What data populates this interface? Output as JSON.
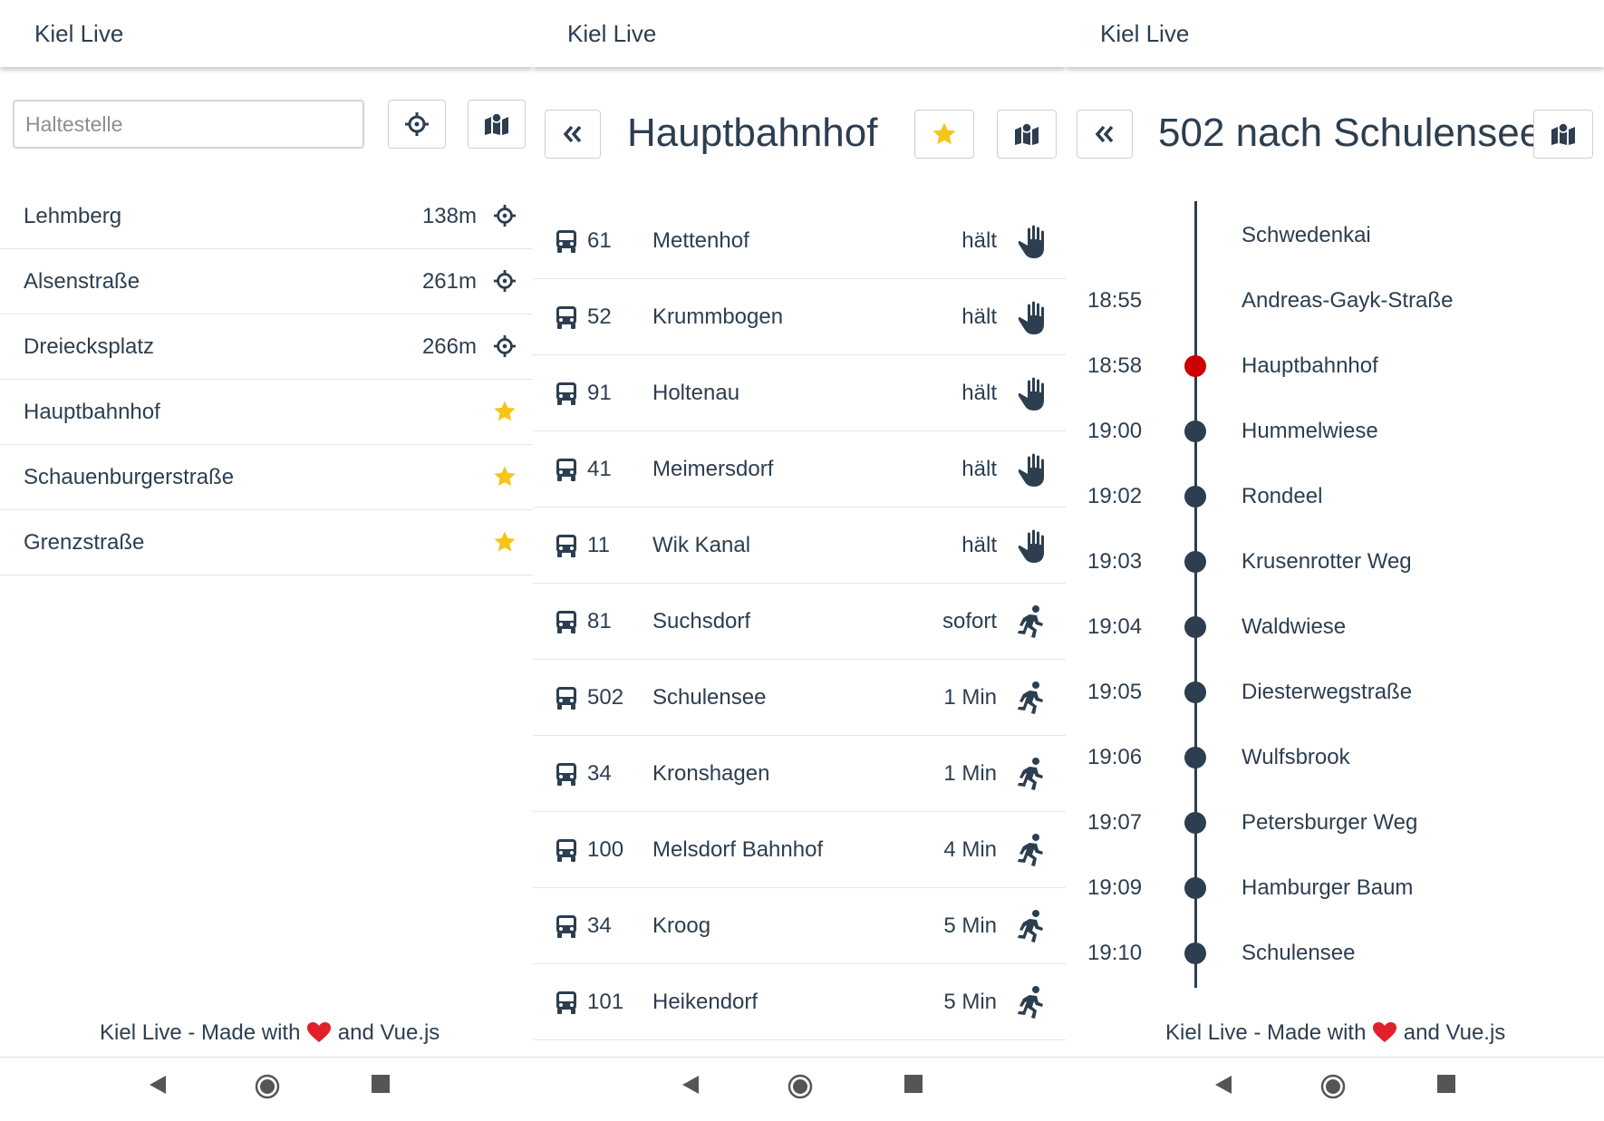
{
  "colors": {
    "text": "#2c3e50",
    "star": "#f5c518",
    "current_stop": "#cc0000",
    "heart": "#e0202a"
  },
  "app_title": "Kiel Live",
  "footer": {
    "prefix": "Kiel Live - Made with",
    "suffix": "and Vue.js"
  },
  "stop_search": {
    "search": {
      "placeholder": "Haltestelle",
      "value": ""
    },
    "stops": [
      {
        "name": "Lehmberg",
        "distance": "138m",
        "icon": "crosshair-icon"
      },
      {
        "name": "Alsenstraße",
        "distance": "261m",
        "icon": "crosshair-icon"
      },
      {
        "name": "Dreiecksplatz",
        "distance": "266m",
        "icon": "crosshair-icon"
      },
      {
        "name": "Hauptbahnhof",
        "distance": "",
        "icon": "star-icon"
      },
      {
        "name": "Schauenburgerstraße",
        "distance": "",
        "icon": "star-icon"
      },
      {
        "name": "Grenzstraße",
        "distance": "",
        "icon": "star-icon"
      }
    ]
  },
  "departures": {
    "title": "Hauptbahnhof",
    "favorite": true,
    "rows": [
      {
        "line": "61",
        "destination": "Mettenhof",
        "time": "hält",
        "status_icon": "hand-icon"
      },
      {
        "line": "52",
        "destination": "Krummbogen",
        "time": "hält",
        "status_icon": "hand-icon"
      },
      {
        "line": "91",
        "destination": "Holtenau",
        "time": "hält",
        "status_icon": "hand-icon"
      },
      {
        "line": "41",
        "destination": "Meimersdorf",
        "time": "hält",
        "status_icon": "hand-icon"
      },
      {
        "line": "11",
        "destination": "Wik Kanal",
        "time": "hält",
        "status_icon": "hand-icon"
      },
      {
        "line": "81",
        "destination": "Suchsdorf",
        "time": "sofort",
        "status_icon": "running-icon"
      },
      {
        "line": "502",
        "destination": "Schulensee",
        "time": "1 Min",
        "status_icon": "running-icon"
      },
      {
        "line": "34",
        "destination": "Kronshagen",
        "time": "1 Min",
        "status_icon": "running-icon"
      },
      {
        "line": "100",
        "destination": "Melsdorf Bahnhof",
        "time": "4 Min",
        "status_icon": "running-icon"
      },
      {
        "line": "34",
        "destination": "Kroog",
        "time": "5 Min",
        "status_icon": "running-icon"
      },
      {
        "line": "101",
        "destination": "Heikendorf",
        "time": "5 Min",
        "status_icon": "running-icon"
      }
    ]
  },
  "trip": {
    "title": "502 nach Schulensee",
    "stops": [
      {
        "time": "",
        "name": "Schwedenkai",
        "marker": "none"
      },
      {
        "time": "18:55",
        "name": "Andreas-Gayk-Straße",
        "marker": "none"
      },
      {
        "time": "18:58",
        "name": "Hauptbahnhof",
        "marker": "current"
      },
      {
        "time": "19:00",
        "name": "Hummelwiese",
        "marker": "upcoming"
      },
      {
        "time": "19:02",
        "name": "Rondeel",
        "marker": "upcoming"
      },
      {
        "time": "19:03",
        "name": "Krusenrotter Weg",
        "marker": "upcoming"
      },
      {
        "time": "19:04",
        "name": "Waldwiese",
        "marker": "upcoming"
      },
      {
        "time": "19:05",
        "name": "Diesterwegstraße",
        "marker": "upcoming"
      },
      {
        "time": "19:06",
        "name": "Wulfsbrook",
        "marker": "upcoming"
      },
      {
        "time": "19:07",
        "name": "Petersburger Weg",
        "marker": "upcoming"
      },
      {
        "time": "19:09",
        "name": "Hamburger Baum",
        "marker": "upcoming"
      },
      {
        "time": "19:10",
        "name": "Schulensee",
        "marker": "upcoming"
      }
    ]
  }
}
